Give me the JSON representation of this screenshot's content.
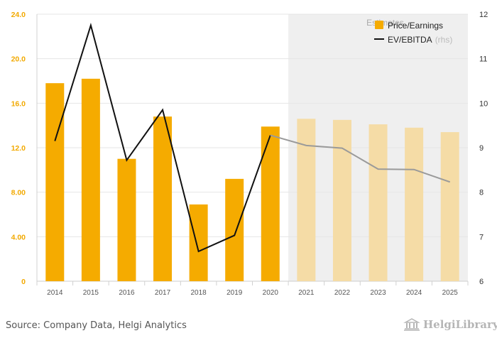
{
  "chart_data": {
    "type": "bar",
    "categories": [
      "2014",
      "2015",
      "2016",
      "2017",
      "2018",
      "2019",
      "2020",
      "2021",
      "2022",
      "2023",
      "2024",
      "2025"
    ],
    "estimates_start": "2021",
    "estimates_label": "Estimates",
    "series": [
      {
        "name": "Price/Earnings",
        "type": "bar",
        "axis": "left",
        "color": "#f5ab00",
        "estimate_color": "#f5dca6",
        "values": [
          17.8,
          18.2,
          11.0,
          14.8,
          6.9,
          9.2,
          13.9,
          14.6,
          14.5,
          14.1,
          13.8,
          13.4
        ]
      },
      {
        "name": "EV/EBITDA",
        "name_suffix": "(rhs)",
        "type": "line",
        "axis": "right",
        "color": "#111111",
        "estimate_color": "#9a9a9a",
        "values": [
          9.15,
          11.75,
          8.72,
          9.85,
          6.67,
          7.03,
          9.28,
          9.05,
          8.99,
          8.52,
          8.51,
          8.23
        ]
      }
    ],
    "y_left": {
      "ylim": [
        0,
        24
      ],
      "ticks": [
        0,
        4,
        8,
        12,
        16,
        20,
        24
      ],
      "tick_labels": [
        "0",
        "4.00",
        "8.00",
        "12.0",
        "16.0",
        "20.0",
        "24.0"
      ]
    },
    "y_right": {
      "ylim": [
        6,
        12
      ],
      "ticks": [
        6,
        7,
        8,
        9,
        10,
        11,
        12
      ],
      "tick_labels": [
        "6",
        "7",
        "8",
        "9",
        "10",
        "11",
        "12"
      ]
    },
    "grid": true,
    "legend_position": "top-right"
  },
  "footer": {
    "source": "Source: Company Data, Helgi Analytics",
    "logo_text": "HelgiLibrary"
  }
}
